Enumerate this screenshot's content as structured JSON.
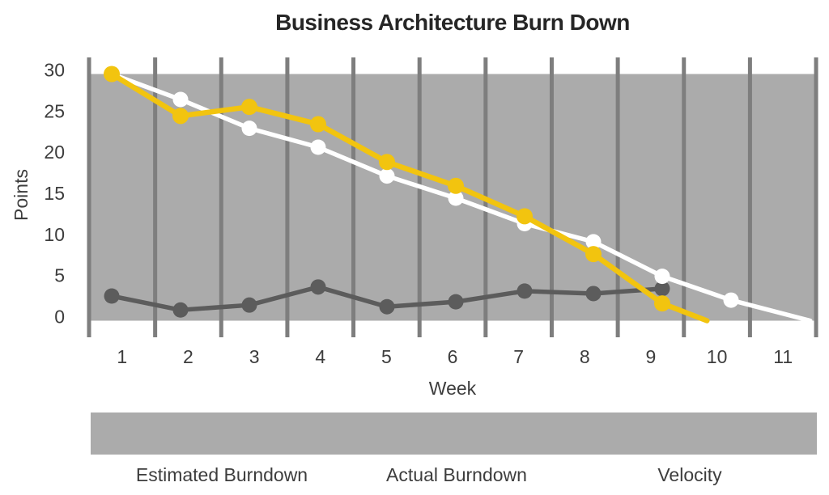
{
  "chart_data": {
    "type": "line",
    "title": "Business Architecture Burn Down",
    "xlabel": "Week",
    "ylabel": "Points",
    "x_ticks": [
      1,
      2,
      3,
      4,
      5,
      6,
      7,
      8,
      9,
      10,
      11
    ],
    "y_ticks": [
      30,
      25,
      20,
      15,
      10,
      5,
      0
    ],
    "ylim": [
      0,
      30
    ],
    "grid": "vertical-only",
    "legend_position": "bottom",
    "plot_band_color": "#ABABAB",
    "gridline_color": "#7E7E7E",
    "text_color": "#3D3D3D",
    "title_color": "#262626",
    "series": [
      {
        "name": "Estimated Burndown",
        "color": "#5C5C5C",
        "x": [
          1,
          2,
          3,
          4,
          5,
          6,
          7,
          8,
          9
        ],
        "values": [
          3,
          1.3,
          1.9,
          4.1,
          1.7,
          2.3,
          3.6,
          3.3,
          3.9
        ]
      },
      {
        "name": "Actual Burndown",
        "color": "#F2C40F",
        "x": [
          1,
          2,
          3,
          4,
          5,
          6,
          7,
          8,
          9
        ],
        "values": [
          30,
          24.9,
          26,
          23.9,
          19.3,
          16.4,
          12.7,
          8.1,
          2.1
        ],
        "line_extends_to": {
          "week": 9.65,
          "value": 0
        }
      },
      {
        "name": "Velocity",
        "color": "#FFFFFF",
        "x": [
          1,
          2,
          3,
          4,
          5,
          6,
          7,
          8,
          9,
          10
        ],
        "values": [
          30,
          26.9,
          23.4,
          21.1,
          17.6,
          14.9,
          11.8,
          9.6,
          5.4,
          2.5
        ],
        "line_extends_to": {
          "week": 11.15,
          "value": 0
        }
      }
    ]
  }
}
